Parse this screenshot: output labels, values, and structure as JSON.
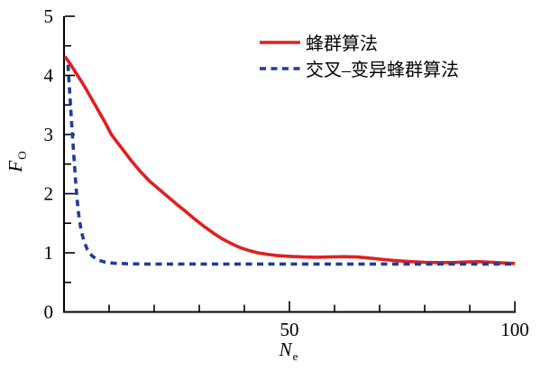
{
  "figure": {
    "background": "#ffffff"
  },
  "chart_data": {
    "type": "line",
    "title": "",
    "xlabel_main": "N",
    "xlabel_sub": "e",
    "ylabel_main": "F",
    "ylabel_sub": "O",
    "xlim": [
      0,
      100
    ],
    "ylim": [
      0,
      5
    ],
    "grid": false,
    "legend_position": "top-center-inside",
    "axis_color": "#000000",
    "x_tick_labels": [
      {
        "value": 50,
        "label": "50"
      },
      {
        "value": 100,
        "label": "100"
      }
    ],
    "x_minor_tick_step": 10,
    "y_tick_labels": [
      {
        "value": 0,
        "label": "0"
      },
      {
        "value": 1,
        "label": "1"
      },
      {
        "value": 2,
        "label": "2"
      },
      {
        "value": 3,
        "label": "3"
      },
      {
        "value": 4,
        "label": "4"
      },
      {
        "value": 5,
        "label": "5"
      }
    ],
    "y_minor_tick_step": 0.5,
    "series": [
      {
        "name": "蜂群算法",
        "color": "#e1201f",
        "line_style": "solid",
        "points": [
          [
            0.2,
            4.32
          ],
          [
            1.5,
            4.18
          ],
          [
            3,
            4.0
          ],
          [
            4.5,
            3.82
          ],
          [
            6,
            3.62
          ],
          [
            7.5,
            3.42
          ],
          [
            9,
            3.22
          ],
          [
            10.5,
            3.0
          ],
          [
            12,
            2.85
          ],
          [
            13.5,
            2.7
          ],
          [
            15,
            2.55
          ],
          [
            17,
            2.37
          ],
          [
            19,
            2.21
          ],
          [
            21,
            2.08
          ],
          [
            23,
            1.95
          ],
          [
            25,
            1.82
          ],
          [
            27,
            1.7
          ],
          [
            29,
            1.57
          ],
          [
            31,
            1.45
          ],
          [
            33,
            1.34
          ],
          [
            35,
            1.24
          ],
          [
            37,
            1.16
          ],
          [
            39,
            1.09
          ],
          [
            41,
            1.04
          ],
          [
            43,
            1.0
          ],
          [
            45,
            0.975
          ],
          [
            47,
            0.955
          ],
          [
            50,
            0.94
          ],
          [
            53,
            0.93
          ],
          [
            56,
            0.925
          ],
          [
            59,
            0.93
          ],
          [
            62,
            0.935
          ],
          [
            65,
            0.93
          ],
          [
            68,
            0.91
          ],
          [
            71,
            0.885
          ],
          [
            74,
            0.865
          ],
          [
            77,
            0.85
          ],
          [
            80,
            0.84
          ],
          [
            83,
            0.835
          ],
          [
            86,
            0.835
          ],
          [
            89,
            0.845
          ],
          [
            92,
            0.85
          ],
          [
            95,
            0.84
          ],
          [
            97,
            0.83
          ],
          [
            100,
            0.82
          ]
        ]
      },
      {
        "name": "交叉–变异蜂群算法",
        "color": "#1e3d9b",
        "line_style": "dashed",
        "points": [
          [
            0.9,
            4.18
          ],
          [
            1.1,
            3.9
          ],
          [
            1.35,
            3.6
          ],
          [
            1.6,
            3.3
          ],
          [
            1.85,
            3.0
          ],
          [
            2.1,
            2.72
          ],
          [
            2.35,
            2.45
          ],
          [
            2.6,
            2.18
          ],
          [
            2.9,
            1.9
          ],
          [
            3.3,
            1.62
          ],
          [
            3.8,
            1.38
          ],
          [
            4.4,
            1.2
          ],
          [
            5.2,
            1.05
          ],
          [
            6.2,
            0.95
          ],
          [
            7.5,
            0.88
          ],
          [
            9,
            0.845
          ],
          [
            11,
            0.825
          ],
          [
            14,
            0.815
          ],
          [
            18,
            0.81
          ],
          [
            25,
            0.81
          ],
          [
            35,
            0.81
          ],
          [
            50,
            0.81
          ],
          [
            65,
            0.81
          ],
          [
            80,
            0.81
          ],
          [
            90,
            0.81
          ],
          [
            100,
            0.81
          ]
        ]
      }
    ]
  }
}
